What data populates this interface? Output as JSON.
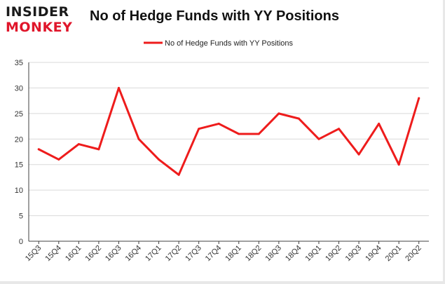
{
  "logo": {
    "line1": "INSIDER",
    "line2": "MONKEY"
  },
  "colors": {
    "series": "#ee1c1c",
    "grid": "#d9d9d9",
    "axis": "#404040",
    "brand_red": "#e0162b"
  },
  "chart_data": {
    "type": "line",
    "title": "No of Hedge Funds with YY Positions",
    "legend_position": "top-center",
    "grid": true,
    "xlabel": "",
    "ylabel": "",
    "ylim": [
      0,
      35
    ],
    "yticks": [
      0,
      5,
      10,
      15,
      20,
      25,
      30,
      35
    ],
    "categories": [
      "15Q3",
      "15Q4",
      "16Q1",
      "16Q2",
      "16Q3",
      "16Q4",
      "17Q1",
      "17Q2",
      "17Q3",
      "17Q4",
      "18Q1",
      "18Q2",
      "18Q3",
      "18Q4",
      "19Q1",
      "19Q2",
      "19Q3",
      "19Q4",
      "20Q1",
      "20Q2"
    ],
    "series": [
      {
        "name": "No of Hedge Funds with YY Positions",
        "values": [
          18,
          16,
          19,
          18,
          30,
          20,
          16,
          13,
          22,
          23,
          21,
          21,
          25,
          24,
          20,
          22,
          17,
          23,
          15,
          28
        ]
      }
    ]
  }
}
